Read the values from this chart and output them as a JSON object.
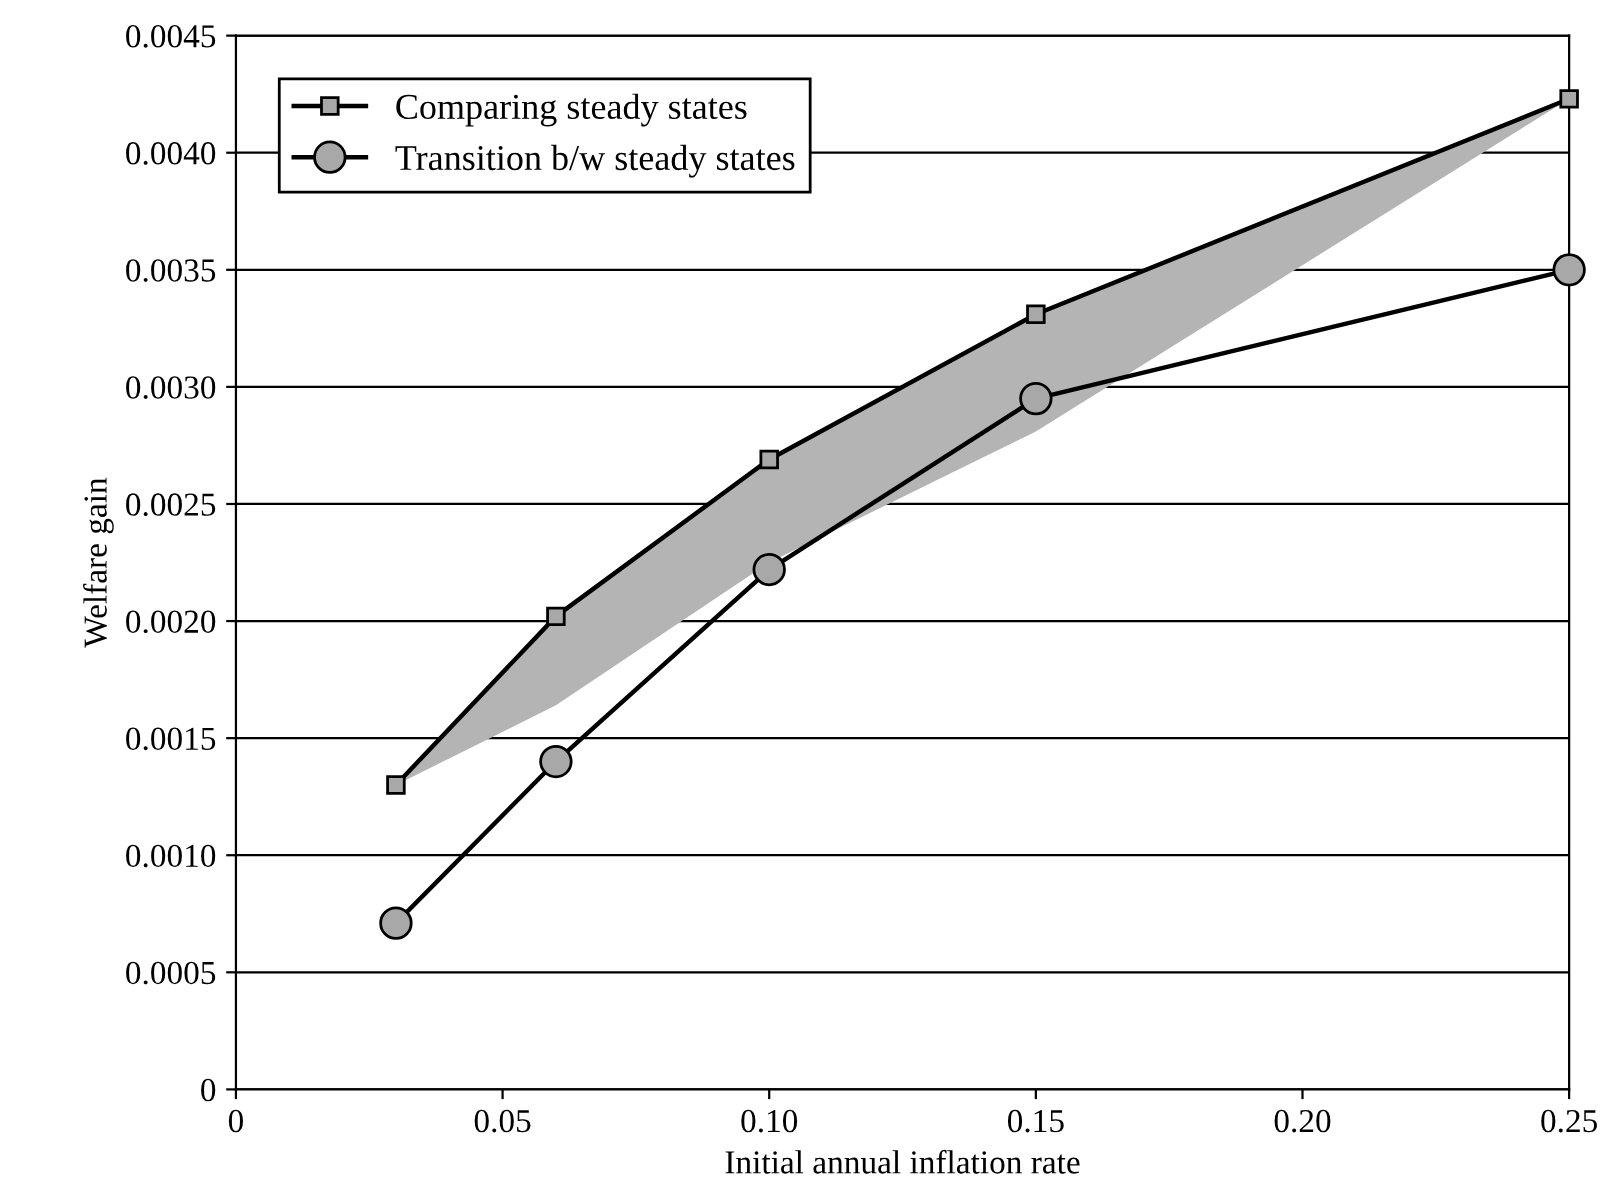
{
  "chart_data": {
    "type": "line",
    "xlabel": "Initial annual inflation rate",
    "ylabel": "Welfare gain",
    "x": [
      0.03,
      0.06,
      0.1,
      0.15,
      0.25
    ],
    "series": [
      {
        "name": "Comparing steady states",
        "color": "#000000",
        "marker": "square",
        "values": [
          0.0013,
          0.00202,
          0.00269,
          0.00331,
          0.00423
        ],
        "lower": [
          0.0013,
          0.00164,
          0.00225,
          0.00281,
          0.00423
        ],
        "upper": [
          0.0013,
          0.00202,
          0.00269,
          0.00331,
          0.00423
        ]
      },
      {
        "name": "Transition b/w steady states",
        "color": "#000000",
        "marker": "circle",
        "values": [
          0.00071,
          0.0014,
          0.00222,
          0.00295,
          0.0035
        ]
      }
    ],
    "xlim": [
      0,
      0.25
    ],
    "xticks": [
      0,
      0.05,
      {
        "value": 0.1,
        "label": "0.10"
      },
      0.15,
      {
        "value": 0.2,
        "label": "0.20"
      },
      0.25
    ],
    "ylim": [
      0,
      0.0045
    ],
    "yticks": [
      0,
      0.0005,
      {
        "value": 0.001,
        "label": "0.0010"
      },
      0.0015,
      {
        "value": 0.002,
        "label": "0.0020"
      },
      0.0025,
      {
        "value": 0.003,
        "label": "0.0030"
      },
      0.0035,
      {
        "value": 0.004,
        "label": "0.0040"
      },
      0.0045
    ],
    "grid": "y",
    "legend": "top left",
    "line_style": "solid"
  }
}
